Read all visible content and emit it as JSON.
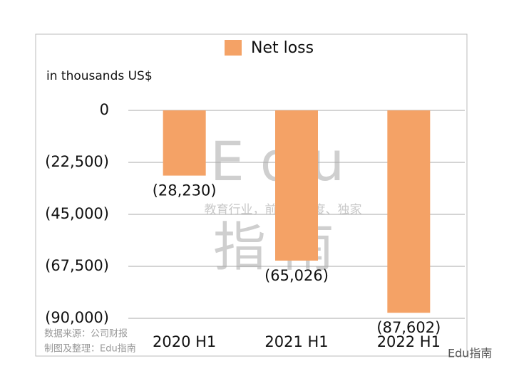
{
  "chart_data": {
    "type": "bar",
    "ylabel": "in thousands US$",
    "categories": [
      "2020 H1",
      "2021 H1",
      "2022 H1"
    ],
    "series": [
      {
        "name": "Net loss",
        "color": "#f4a266",
        "values": [
          -28230,
          -65026,
          -87602
        ],
        "value_labels": [
          "(28,230)",
          "(65,026)",
          "(87,602)"
        ]
      }
    ],
    "ylim": [
      -90000,
      0
    ],
    "yticks": [
      0,
      {
        "value": -22500,
        "label": "(22,500)"
      },
      {
        "value": -45000,
        "label": "(45,000)"
      },
      {
        "value": -67500,
        "label": "(67,500)"
      },
      {
        "value": -90000,
        "label": "(90,000)"
      }
    ],
    "grid": true,
    "legend": "top",
    "watermark": [
      "Edu",
      "教育行业，前沿、深度、独家",
      "指南"
    ],
    "source": "数据来源：公司财报",
    "credit": "制图及整理：Edu指南",
    "brand": "Edu指南"
  }
}
